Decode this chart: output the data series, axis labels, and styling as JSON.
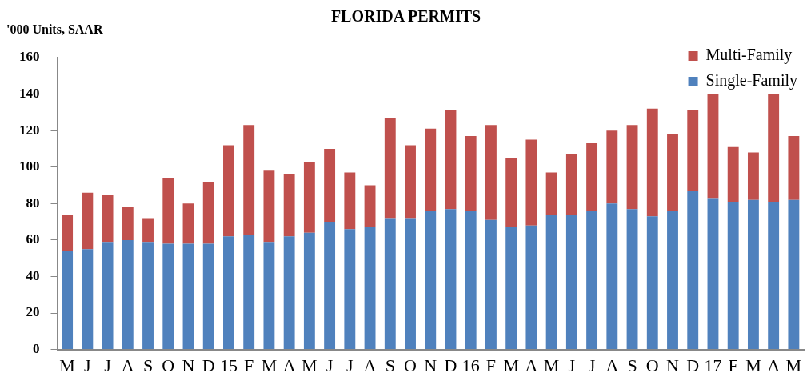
{
  "chart_data": {
    "type": "bar",
    "title": "FLORIDA PERMITS",
    "ylabel": "'000 Units, SAAR",
    "categories": [
      "M",
      "J",
      "J",
      "A",
      "S",
      "O",
      "N",
      "D",
      "15",
      "F",
      "M",
      "A",
      "M",
      "J",
      "J",
      "A",
      "S",
      "O",
      "N",
      "D",
      "16",
      "F",
      "M",
      "A",
      "M",
      "J",
      "J",
      "A",
      "S",
      "O",
      "N",
      "D",
      "17",
      "F",
      "M",
      "A",
      "M"
    ],
    "stacked": true,
    "ylim": [
      0,
      160
    ],
    "yticks": [
      0,
      20,
      40,
      60,
      80,
      100,
      120,
      140,
      160
    ],
    "grid": false,
    "legend": "top right",
    "series": [
      {
        "name": "Single-Family",
        "color": "#4f81bd",
        "values": [
          54,
          55,
          59,
          60,
          59,
          58,
          58,
          58,
          62,
          63,
          59,
          62,
          64,
          70,
          66,
          67,
          72,
          72,
          76,
          77,
          76,
          71,
          67,
          68,
          74,
          74,
          76,
          80,
          77,
          73,
          76,
          87,
          83,
          81,
          82,
          81,
          82
        ]
      },
      {
        "name": "Multi-Family",
        "color": "#c0504d",
        "values": [
          20,
          31,
          26,
          18,
          13,
          36,
          22,
          34,
          50,
          60,
          39,
          34,
          39,
          40,
          31,
          23,
          55,
          40,
          45,
          54,
          41,
          52,
          38,
          47,
          23,
          33,
          37,
          40,
          46,
          59,
          42,
          44,
          57,
          30,
          26,
          59,
          35
        ]
      }
    ]
  }
}
